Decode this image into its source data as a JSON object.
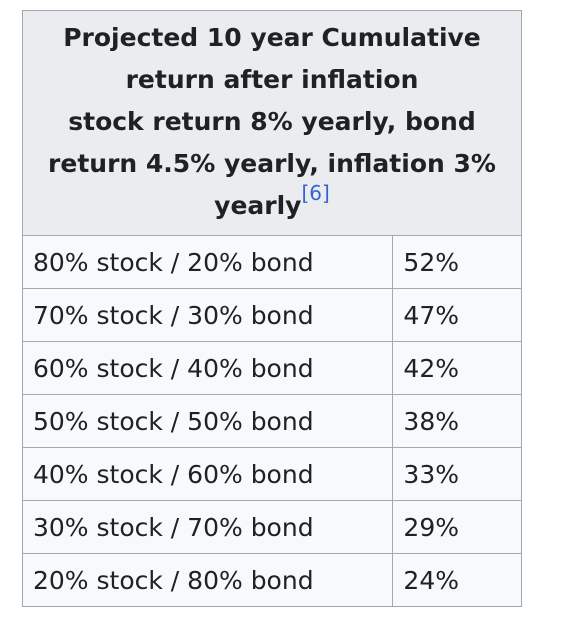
{
  "table": {
    "caption_lines": [
      "Projected 10 year Cumulative",
      "return after inflation",
      "stock return 8% yearly, bond",
      "return 4.5% yearly, inflation 3%",
      "yearly"
    ],
    "reference": "[6]",
    "rows": [
      {
        "allocation": "80% stock / 20% bond",
        "return": "52%"
      },
      {
        "allocation": "70% stock / 30% bond",
        "return": "47%"
      },
      {
        "allocation": "60% stock / 40% bond",
        "return": "42%"
      },
      {
        "allocation": "50% stock / 50% bond",
        "return": "38%"
      },
      {
        "allocation": "40% stock / 60% bond",
        "return": "33%"
      },
      {
        "allocation": "30% stock / 70% bond",
        "return": "29%"
      },
      {
        "allocation": "20% stock / 80% bond",
        "return": "24%"
      }
    ]
  },
  "colors": {
    "header_bg": "#eaecf0",
    "cell_bg": "#f8f9fa",
    "border": "#a2a9b1",
    "text": "#202122",
    "link": "#3366cc"
  }
}
